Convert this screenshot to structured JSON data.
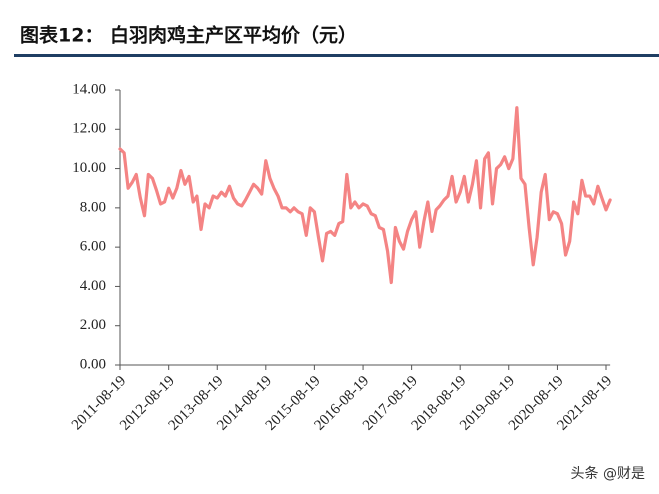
{
  "chart_data": {
    "type": "line",
    "title": "图表12：  白羽肉鸡主产区平均价（元）",
    "watermark": "头条 @财是",
    "x": [
      "2011-08-19",
      "2011-09-19",
      "2011-10-19",
      "2011-11-19",
      "2011-12-19",
      "2012-01-19",
      "2012-02-19",
      "2012-03-19",
      "2012-04-19",
      "2012-05-19",
      "2012-06-19",
      "2012-07-19",
      "2012-08-19",
      "2012-09-19",
      "2012-10-19",
      "2012-11-19",
      "2012-12-19",
      "2013-01-19",
      "2013-02-19",
      "2013-03-19",
      "2013-04-19",
      "2013-05-19",
      "2013-06-19",
      "2013-07-19",
      "2013-08-19",
      "2013-09-19",
      "2013-10-19",
      "2013-11-19",
      "2013-12-19",
      "2014-01-19",
      "2014-02-19",
      "2014-03-19",
      "2014-04-19",
      "2014-05-19",
      "2014-06-19",
      "2014-07-19",
      "2014-08-19",
      "2014-09-19",
      "2014-10-19",
      "2014-11-19",
      "2014-12-19",
      "2015-01-19",
      "2015-02-19",
      "2015-03-19",
      "2015-04-19",
      "2015-05-19",
      "2015-06-19",
      "2015-07-19",
      "2015-08-19",
      "2015-09-19",
      "2015-10-19",
      "2015-11-19",
      "2015-12-19",
      "2016-01-19",
      "2016-02-19",
      "2016-03-19",
      "2016-04-19",
      "2016-05-19",
      "2016-06-19",
      "2016-07-19",
      "2016-08-19",
      "2016-09-19",
      "2016-10-19",
      "2016-11-19",
      "2016-12-19",
      "2017-01-19",
      "2017-02-19",
      "2017-03-19",
      "2017-04-19",
      "2017-05-19",
      "2017-06-19",
      "2017-07-19",
      "2017-08-19",
      "2017-09-19",
      "2017-10-19",
      "2017-11-19",
      "2017-12-19",
      "2018-01-19",
      "2018-02-19",
      "2018-03-19",
      "2018-04-19",
      "2018-05-19",
      "2018-06-19",
      "2018-07-19",
      "2018-08-19",
      "2018-09-19",
      "2018-10-19",
      "2018-11-19",
      "2018-12-19",
      "2019-01-19",
      "2019-02-19",
      "2019-03-19",
      "2019-04-19",
      "2019-05-19",
      "2019-06-19",
      "2019-07-19",
      "2019-08-19",
      "2019-09-19",
      "2019-10-19",
      "2019-11-19",
      "2019-12-19",
      "2020-01-19",
      "2020-02-19",
      "2020-03-19",
      "2020-04-19",
      "2020-05-19",
      "2020-06-19",
      "2020-07-19",
      "2020-08-19",
      "2020-09-19",
      "2020-10-19",
      "2020-11-19",
      "2020-12-19",
      "2021-01-19",
      "2021-02-19",
      "2021-03-19",
      "2021-04-19",
      "2021-05-19",
      "2021-06-19",
      "2021-07-19",
      "2021-08-19",
      "2021-09-19"
    ],
    "series": [
      {
        "name": "白羽肉鸡主产区平均价",
        "color": "#f48484",
        "values": [
          11.0,
          10.8,
          9.0,
          9.3,
          9.7,
          8.5,
          7.6,
          9.7,
          9.5,
          8.9,
          8.2,
          8.3,
          9.0,
          8.5,
          9.0,
          9.9,
          9.2,
          9.6,
          8.3,
          8.6,
          6.9,
          8.2,
          8.0,
          8.6,
          8.5,
          8.8,
          8.6,
          9.1,
          8.5,
          8.2,
          8.1,
          8.4,
          8.8,
          9.2,
          9.0,
          8.7,
          10.4,
          9.5,
          9.0,
          8.6,
          8.0,
          8.0,
          7.8,
          8.0,
          7.8,
          7.7,
          6.6,
          8.0,
          7.8,
          6.5,
          5.3,
          6.7,
          6.8,
          6.6,
          7.2,
          7.3,
          9.7,
          8.0,
          8.3,
          8.0,
          8.2,
          8.1,
          7.7,
          7.6,
          7.0,
          6.9,
          5.8,
          4.2,
          7.0,
          6.3,
          5.9,
          6.8,
          7.4,
          7.8,
          6.0,
          7.3,
          8.3,
          6.8,
          7.9,
          8.1,
          8.4,
          8.6,
          9.6,
          8.3,
          8.8,
          9.6,
          8.3,
          9.2,
          10.4,
          8.0,
          10.5,
          10.8,
          8.2,
          10.0,
          10.2,
          10.6,
          10.0,
          10.5,
          13.1,
          9.5,
          9.2,
          7.0,
          5.1,
          6.5,
          8.8,
          9.7,
          7.4,
          7.8,
          7.7,
          7.2,
          5.6,
          6.3,
          8.3,
          7.7,
          9.4,
          8.6,
          8.6,
          8.2,
          9.1,
          8.5,
          7.9,
          8.4
        ]
      }
    ],
    "xlim": [
      "2011-08-19",
      "2021-09-19"
    ],
    "xticks": [
      "2011-08-19",
      "2012-08-19",
      "2013-08-19",
      "2014-08-19",
      "2015-08-19",
      "2016-08-19",
      "2017-08-19",
      "2018-08-19",
      "2019-08-19",
      "2020-08-19",
      "2021-08-19"
    ],
    "ylim": [
      0,
      14
    ],
    "yticks": [
      {
        "value": 0,
        "label": "0.00"
      },
      {
        "value": 2,
        "label": "2.00"
      },
      {
        "value": 4,
        "label": "4.00"
      },
      {
        "value": 6,
        "label": "6.00"
      },
      {
        "value": 8,
        "label": "8.00"
      },
      {
        "value": 10,
        "label": "10.00"
      },
      {
        "value": 12,
        "label": "12.00"
      },
      {
        "value": 14,
        "label": "14.00"
      }
    ],
    "grid": false
  }
}
